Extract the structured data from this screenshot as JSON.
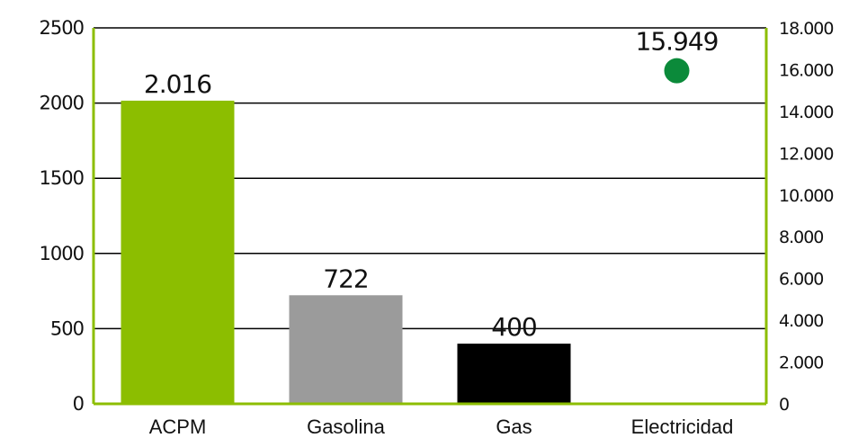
{
  "chart_data": {
    "type": "bar",
    "categories": [
      "ACPM",
      "Gasolina",
      "Gas",
      "Electricidad"
    ],
    "series": [
      {
        "axis": "left",
        "kind": "bar",
        "values": [
          2016,
          722,
          400,
          null
        ],
        "labels": [
          "2.016",
          "722",
          "400",
          null
        ],
        "colors": [
          "#8cbe00",
          "#9b9b9b",
          "#000000",
          null
        ]
      },
      {
        "axis": "right",
        "kind": "scatter",
        "values": [
          null,
          null,
          null,
          15949
        ],
        "labels": [
          null,
          null,
          null,
          "15.949"
        ],
        "color": "#0b8a3a"
      }
    ],
    "y_left": {
      "ylim": [
        0,
        2500
      ],
      "ticks": [
        0,
        500,
        1000,
        1500,
        2000,
        2500
      ],
      "tick_labels": [
        "0",
        "500",
        "1000",
        "1500",
        "2000",
        "2500"
      ]
    },
    "y_right": {
      "ylim": [
        0,
        18000
      ],
      "ticks": [
        0,
        2000,
        4000,
        6000,
        8000,
        10000,
        12000,
        14000,
        16000,
        18000
      ],
      "tick_labels": [
        "0",
        "2.000",
        "4.000",
        "6.000",
        "8.000",
        "10.000",
        "12.000",
        "14.000",
        "16.000",
        "18.000"
      ],
      "axis_color": "#8cbe00"
    },
    "grid": true,
    "legend": "none"
  }
}
